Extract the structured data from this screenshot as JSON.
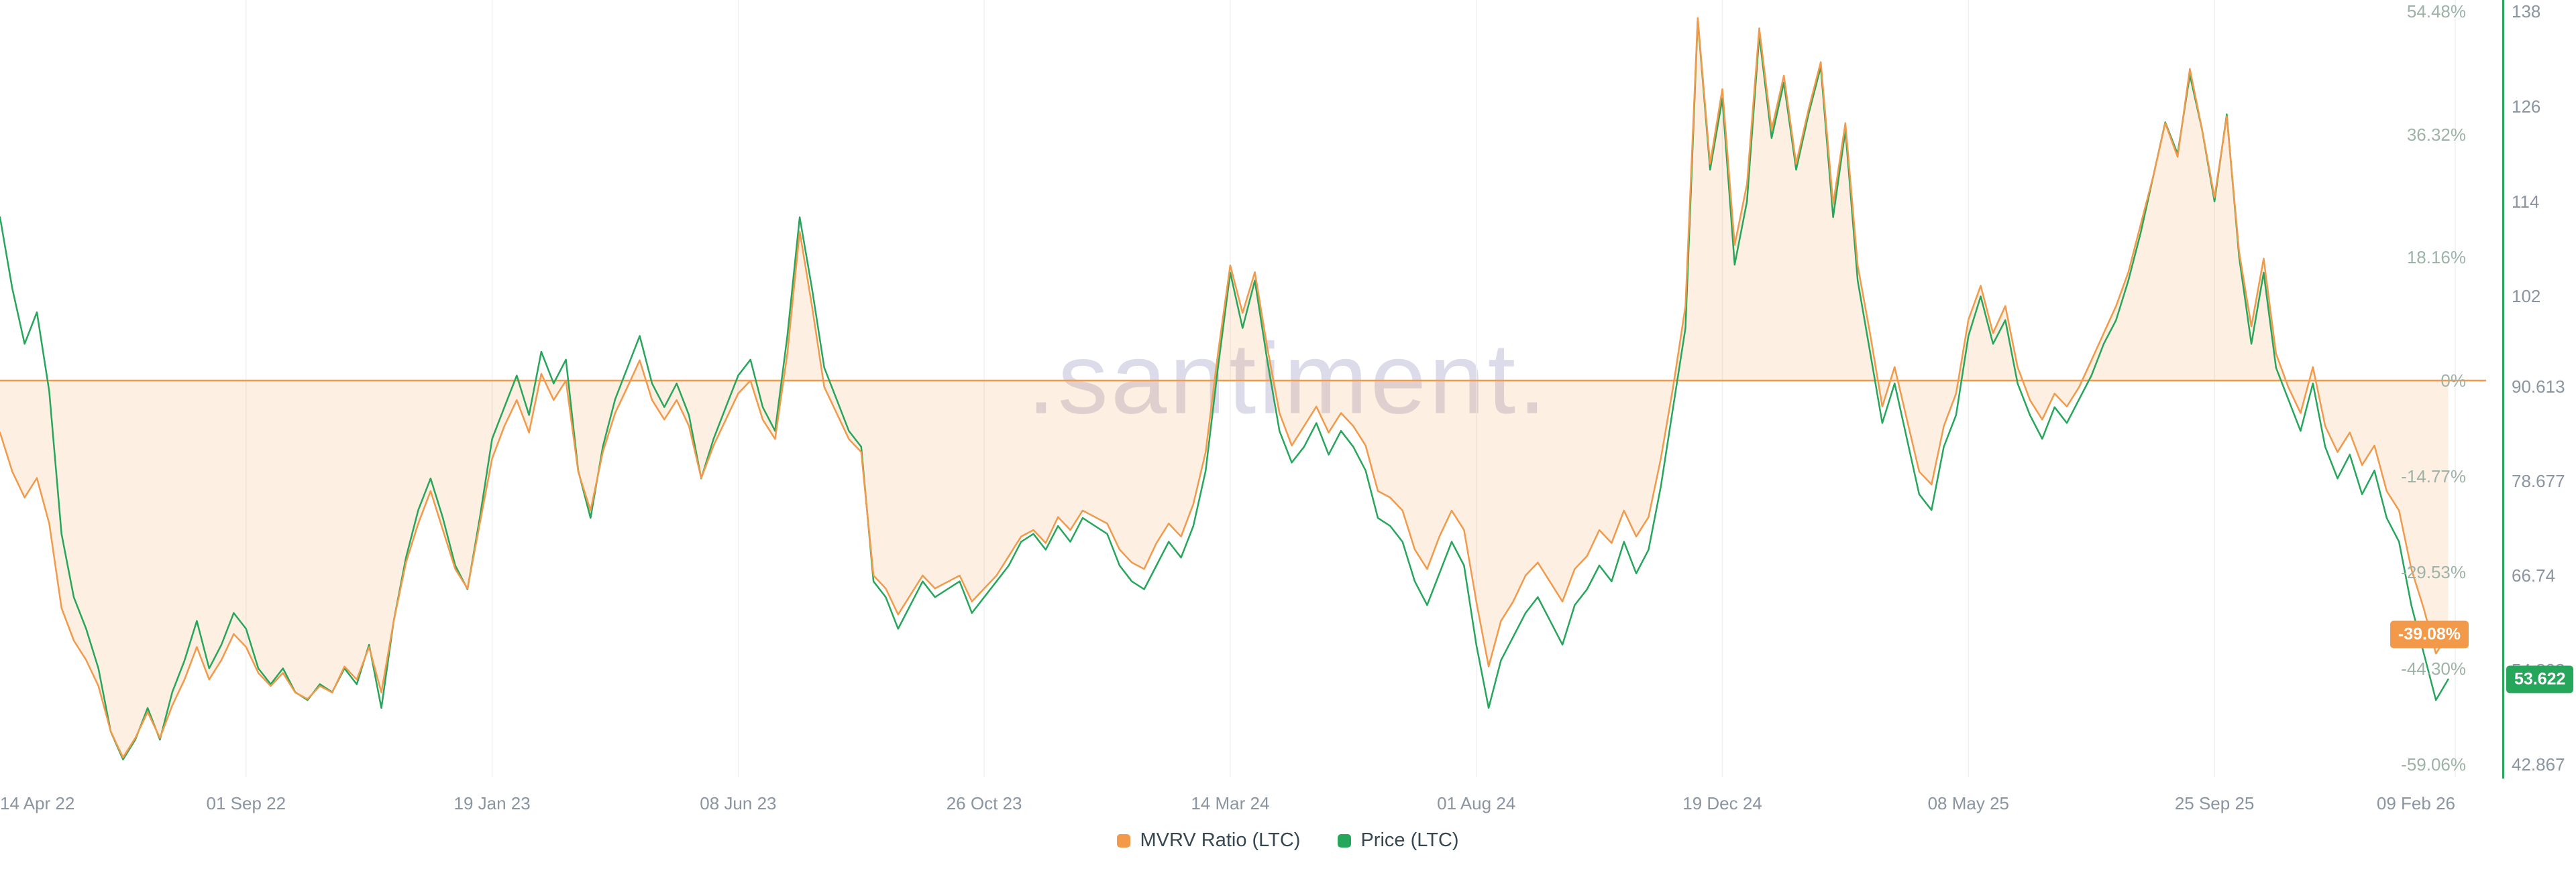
{
  "ui": {
    "watermark": ".santiment.",
    "badges": {
      "mvrv_text": "-39.08%",
      "mvrv_value": -39.08,
      "price_text": "53.622",
      "price_value": 53.622
    },
    "colors": {
      "mvrv_orange": "#f2994a",
      "price_green": "#26a65b",
      "fill_orange": "rgba(242,153,74,0.16)",
      "grid": "#eef0f4",
      "axis_text": "#8b95a1",
      "percent_axis_text": "#9db3a8",
      "watermark": "#dcdbe9"
    }
  },
  "chart_data": {
    "type": "line",
    "description": "MVRV Ratio (LTC) percentage vs Price (LTC), sampled weekly from 14 Apr 22 to 09 Feb 26",
    "legend_position": "bottom-center",
    "grid": "vertical-faint",
    "x_axis": {
      "start": "14 Apr 22",
      "end": "09 Feb 26",
      "sample_step_days": 7,
      "total_days": 1397,
      "ticks": [
        {
          "label": "14 Apr 22",
          "day": 0
        },
        {
          "label": "01 Sep 22",
          "day": 140
        },
        {
          "label": "19 Jan 23",
          "day": 280
        },
        {
          "label": "08 Jun 23",
          "day": 420
        },
        {
          "label": "26 Oct 23",
          "day": 560
        },
        {
          "label": "14 Mar 24",
          "day": 700
        },
        {
          "label": "01 Aug 24",
          "day": 840
        },
        {
          "label": "19 Dec 24",
          "day": 980
        },
        {
          "label": "08 May 25",
          "day": 1120
        },
        {
          "label": "25 Sep 25",
          "day": 1260
        },
        {
          "label": "09 Feb 26",
          "day": 1397
        }
      ]
    },
    "y_axis_percent": {
      "side": "right-inner",
      "range": [
        -59.06,
        54.48
      ],
      "zero_line": true,
      "ticks": [
        {
          "label": "54.48%",
          "value": 54.48
        },
        {
          "label": "36.32%",
          "value": 36.32
        },
        {
          "label": "18.16%",
          "value": 18.16
        },
        {
          "label": "0%",
          "value": 0
        },
        {
          "label": "-14.77%",
          "value": -14.77
        },
        {
          "label": "-29.53%",
          "value": -29.53
        },
        {
          "label": "-44.30%",
          "value": -44.3
        },
        {
          "label": "-59.06%",
          "value": -59.06
        }
      ]
    },
    "y_axis_price": {
      "side": "right-outer",
      "range": [
        42.867,
        138
      ],
      "ticks": [
        {
          "label": "138",
          "value": 138
        },
        {
          "label": "126",
          "value": 126
        },
        {
          "label": "114",
          "value": 114
        },
        {
          "label": "102",
          "value": 102
        },
        {
          "label": "90.613",
          "value": 90.613
        },
        {
          "label": "78.677",
          "value": 78.677
        },
        {
          "label": "66.74",
          "value": 66.74
        },
        {
          "label": "54.803",
          "value": 54.803
        },
        {
          "label": "42.867",
          "value": 42.867
        }
      ]
    },
    "series": [
      {
        "name": "MVRV Ratio (LTC)",
        "color": "#f2994a",
        "axis": "percent",
        "unit": "%",
        "fill_to_zero": true,
        "last_value": -39.08,
        "values": [
          -8,
          -14,
          -18,
          -15,
          -22,
          -35,
          -40,
          -43,
          -47,
          -54,
          -58,
          -55,
          -51,
          -55,
          -50,
          -46,
          -41,
          -46,
          -43,
          -39,
          -41,
          -45,
          -47,
          -45,
          -48,
          -49,
          -47,
          -48,
          -44,
          -46,
          -41,
          -48,
          -37,
          -28,
          -22,
          -17,
          -23,
          -29,
          -32,
          -22,
          -12,
          -7,
          -3,
          -8,
          1,
          -3,
          0,
          -14,
          -20,
          -11,
          -5,
          -1,
          3,
          -3,
          -6,
          -3,
          -7,
          -15,
          -10,
          -6,
          -2,
          0,
          -6,
          -9,
          4,
          22,
          11,
          -1,
          -5,
          -9,
          -11,
          -30,
          -32,
          -36,
          -33,
          -30,
          -32,
          -31,
          -30,
          -34,
          -32,
          -30,
          -27,
          -24,
          -23,
          -25,
          -21,
          -23,
          -20,
          -21,
          -22,
          -26,
          -28,
          -29,
          -25,
          -22,
          -24,
          -19,
          -11,
          4,
          17,
          10,
          16,
          5,
          -5,
          -10,
          -7,
          -4,
          -8,
          -5,
          -7,
          -10,
          -17,
          -18,
          -20,
          -26,
          -29,
          -24,
          -20,
          -23,
          -34,
          -44,
          -37,
          -34,
          -30,
          -28,
          -31,
          -34,
          -29,
          -27,
          -23,
          -25,
          -20,
          -24,
          -21,
          -12,
          -1,
          11,
          53.5,
          32,
          43,
          20,
          29,
          52,
          37,
          45,
          32,
          40,
          47,
          26,
          38,
          17,
          7,
          -4,
          2,
          -6,
          -14,
          -16,
          -7,
          -2,
          9,
          14,
          7,
          11,
          2,
          -3,
          -6,
          -2,
          -4,
          -1,
          3,
          7,
          11,
          16,
          23,
          30,
          38,
          33,
          46,
          37,
          27,
          39,
          19,
          8,
          18,
          4,
          -1,
          -5,
          2,
          -7,
          -11,
          -8,
          -13,
          -10,
          -17,
          -20,
          -29,
          -35,
          -42,
          -39.08
        ]
      },
      {
        "name": "Price (LTC)",
        "color": "#26a65b",
        "axis": "price",
        "unit": "USD",
        "fill_to_zero": false,
        "last_value": 53.622,
        "values": [
          112,
          103,
          96,
          100,
          90,
          72,
          64,
          60,
          55,
          47,
          43.5,
          46,
          50,
          46,
          52,
          56,
          61,
          55,
          58,
          62,
          60,
          55,
          53,
          55,
          52,
          51,
          53,
          52,
          55,
          53,
          58,
          50,
          61,
          69,
          75,
          79,
          74,
          68,
          65,
          74,
          84,
          88,
          92,
          87,
          95,
          91,
          94,
          80,
          74,
          83,
          89,
          93,
          97,
          91,
          88,
          91,
          87,
          79,
          84,
          88,
          92,
          94,
          88,
          85,
          97,
          112,
          103,
          93,
          89,
          85,
          83,
          66,
          64,
          60,
          63,
          66,
          64,
          65,
          66,
          62,
          64,
          66,
          68,
          71,
          72,
          70,
          73,
          71,
          74,
          73,
          72,
          68,
          66,
          65,
          68,
          71,
          69,
          73,
          80,
          93,
          105,
          98,
          104,
          94,
          85,
          81,
          83,
          86,
          82,
          85,
          83,
          80,
          74,
          73,
          71,
          66,
          63,
          67,
          71,
          68,
          58,
          50,
          56,
          59,
          62,
          64,
          61,
          58,
          63,
          65,
          68,
          66,
          71,
          67,
          70,
          78,
          88,
          98,
          137,
          118,
          127,
          106,
          114,
          135,
          122,
          129,
          118,
          125,
          131,
          112,
          123,
          104,
          95,
          86,
          91,
          84,
          77,
          75,
          83,
          87,
          97,
          102,
          96,
          99,
          91,
          87,
          84,
          88,
          86,
          89,
          92,
          96,
          99,
          104,
          110,
          117,
          124,
          120,
          130,
          123,
          114,
          125,
          107,
          96,
          105,
          93,
          89,
          85,
          91,
          83,
          79,
          82,
          77,
          80,
          74,
          71,
          63,
          57,
          51,
          53.622
        ]
      }
    ]
  }
}
